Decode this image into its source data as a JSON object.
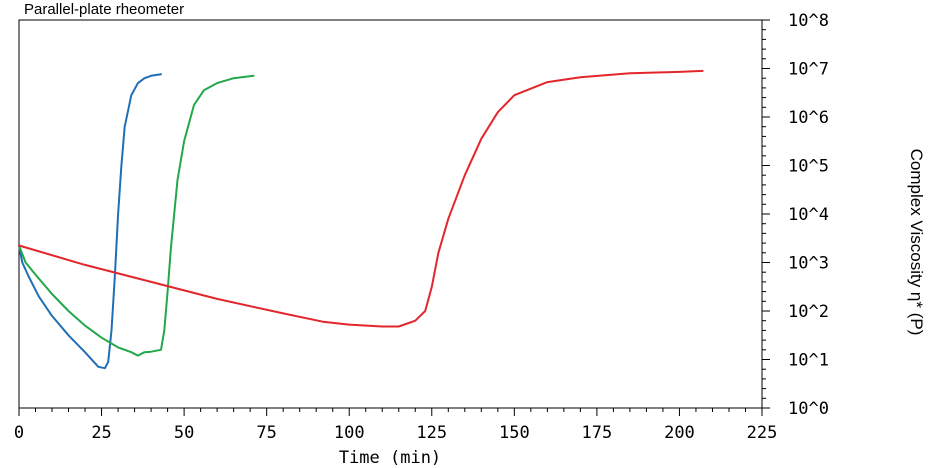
{
  "chart_data": {
    "type": "line",
    "title": "Parallel-plate rheometer",
    "xlabel": "Time (min)",
    "ylabel": "Complex Viscosity η* (P)",
    "xlim": [
      0,
      225
    ],
    "ylim": [
      0,
      8
    ],
    "y_scale": "log10 (exponent shown)",
    "x_ticks": [
      "0",
      "25",
      "50",
      "75",
      "100",
      "125",
      "150",
      "175",
      "200",
      "225"
    ],
    "y_ticks": [
      "10^0",
      "10^1",
      "10^2",
      "10^3",
      "10^4",
      "10^5",
      "10^6",
      "10^7",
      "10^8"
    ],
    "y_axis_side": "right",
    "grid": false,
    "series": [
      {
        "color": "#1f6fb6",
        "points": [
          [
            0,
            3.35
          ],
          [
            1,
            3.0
          ],
          [
            3,
            2.7
          ],
          [
            6,
            2.3
          ],
          [
            10,
            1.9
          ],
          [
            15,
            1.5
          ],
          [
            20,
            1.15
          ],
          [
            24,
            0.85
          ],
          [
            26,
            0.82
          ],
          [
            27,
            0.95
          ],
          [
            28,
            1.6
          ],
          [
            29,
            2.7
          ],
          [
            30,
            4.0
          ],
          [
            31,
            5.0
          ],
          [
            32,
            5.8
          ],
          [
            34,
            6.45
          ],
          [
            36,
            6.7
          ],
          [
            38,
            6.8
          ],
          [
            40,
            6.85
          ],
          [
            43,
            6.88
          ]
        ]
      },
      {
        "color": "#22a84a",
        "points": [
          [
            0,
            3.35
          ],
          [
            2,
            3.0
          ],
          [
            5,
            2.75
          ],
          [
            10,
            2.35
          ],
          [
            15,
            2.0
          ],
          [
            20,
            1.7
          ],
          [
            25,
            1.45
          ],
          [
            30,
            1.25
          ],
          [
            34,
            1.15
          ],
          [
            36,
            1.08
          ],
          [
            38,
            1.15
          ],
          [
            40,
            1.16
          ],
          [
            43,
            1.2
          ],
          [
            44,
            1.6
          ],
          [
            45,
            2.4
          ],
          [
            46,
            3.3
          ],
          [
            47,
            4.0
          ],
          [
            48,
            4.7
          ],
          [
            50,
            5.5
          ],
          [
            53,
            6.25
          ],
          [
            56,
            6.55
          ],
          [
            60,
            6.7
          ],
          [
            65,
            6.8
          ],
          [
            71,
            6.85
          ]
        ]
      },
      {
        "color": "#e3262b",
        "points": [
          [
            0,
            3.35
          ],
          [
            20,
            2.95
          ],
          [
            40,
            2.6
          ],
          [
            60,
            2.25
          ],
          [
            80,
            1.95
          ],
          [
            92,
            1.78
          ],
          [
            100,
            1.72
          ],
          [
            110,
            1.68
          ],
          [
            115,
            1.68
          ],
          [
            120,
            1.8
          ],
          [
            123,
            2.0
          ],
          [
            125,
            2.5
          ],
          [
            127,
            3.2
          ],
          [
            130,
            3.9
          ],
          [
            135,
            4.8
          ],
          [
            140,
            5.55
          ],
          [
            145,
            6.1
          ],
          [
            150,
            6.45
          ],
          [
            160,
            6.72
          ],
          [
            170,
            6.82
          ],
          [
            185,
            6.9
          ],
          [
            200,
            6.93
          ],
          [
            207,
            6.95
          ]
        ]
      }
    ]
  }
}
